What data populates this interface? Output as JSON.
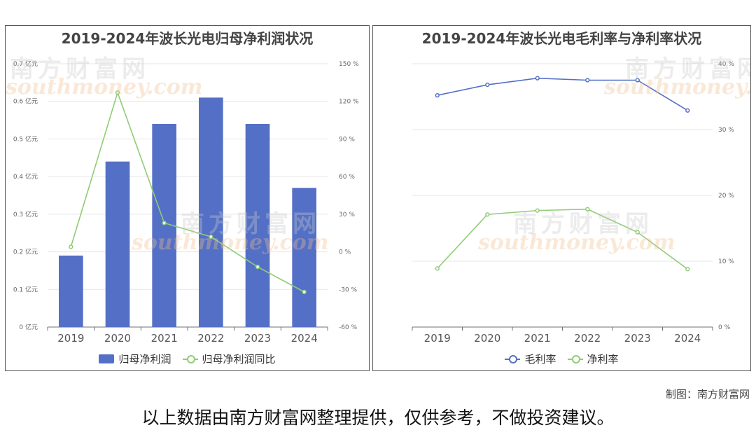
{
  "charts": {
    "left": {
      "title": "2019-2024年波长光电归母净利润状况",
      "legend": [
        {
          "label": "归母净利润",
          "type": "bar",
          "color": "#5470c6"
        },
        {
          "label": "归母净利润同比",
          "type": "line",
          "color": "#91cc75"
        }
      ]
    },
    "right": {
      "title": "2019-2024年波长光电毛利率与净利率状况",
      "legend": [
        {
          "label": "毛利率",
          "type": "line",
          "color": "#5470c6"
        },
        {
          "label": "净利率",
          "type": "line",
          "color": "#91cc75"
        }
      ]
    }
  },
  "chart_data": [
    {
      "type": "bar",
      "title": "2019-2024年波长光电归母净利润状况",
      "categories": [
        "2019",
        "2020",
        "2021",
        "2022",
        "2023",
        "2024"
      ],
      "series": [
        {
          "name": "归母净利润",
          "type": "bar",
          "axis": "left",
          "values": [
            0.19,
            0.44,
            0.54,
            0.61,
            0.54,
            0.37
          ]
        },
        {
          "name": "归母净利润同比",
          "type": "line",
          "axis": "right",
          "values": [
            4,
            127,
            23,
            12,
            -12,
            -32
          ]
        }
      ],
      "y_left": {
        "min": 0,
        "max": 0.7,
        "ticks": [
          "0 亿元",
          "0.1 亿元",
          "0.2 亿元",
          "0.3 亿元",
          "0.4 亿元",
          "0.5 亿元",
          "0.6 亿元",
          "0.7 亿元"
        ]
      },
      "y_right": {
        "min": -60,
        "max": 150,
        "ticks": [
          "-60 %",
          "-30 %",
          "0 %",
          "30 %",
          "60 %",
          "90 %",
          "120 %",
          "150 %"
        ]
      },
      "grid": true,
      "legend_position": "bottom"
    },
    {
      "type": "line",
      "title": "2019-2024年波长光电毛利率与净利率状况",
      "categories": [
        "2019",
        "2020",
        "2021",
        "2022",
        "2023",
        "2024"
      ],
      "series": [
        {
          "name": "毛利率",
          "values": [
            35.2,
            36.8,
            37.8,
            37.5,
            37.5,
            32.9
          ]
        },
        {
          "name": "净利率",
          "values": [
            8.9,
            17.1,
            17.7,
            17.9,
            14.4,
            8.8
          ]
        }
      ],
      "y_right": {
        "min": 0,
        "max": 40,
        "ticks": [
          "0 %",
          "10 %",
          "20 %",
          "30 %",
          "40 %"
        ]
      },
      "grid": true,
      "legend_position": "bottom"
    }
  ],
  "credit": "制图：南方财富网",
  "footer_note": "以上数据由南方财富网整理提供，仅供参考，不做投资建议。",
  "watermark": {
    "cn": "南方财富网",
    "en": "southmoney.com"
  }
}
